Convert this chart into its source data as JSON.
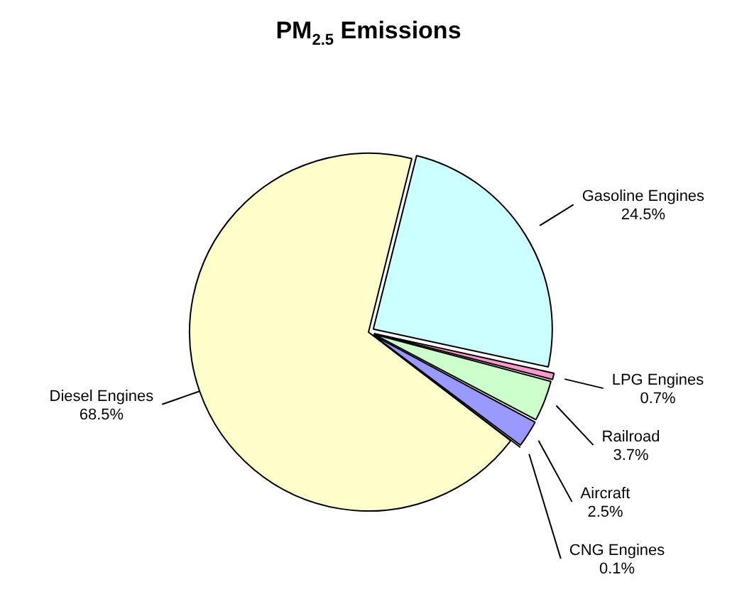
{
  "chart_data": {
    "type": "pie",
    "title": "PM$_{2.5}$ Emissions",
    "categories": [
      "Gasoline Engines",
      "LPG Engines",
      "Railroad",
      "Aircraft",
      "CNG Engines",
      "Diesel Engines"
    ],
    "values": [
      24.5,
      0.7,
      3.7,
      2.5,
      0.1,
      68.5
    ],
    "value_labels": [
      "24.5%",
      "0.7%",
      "3.7%",
      "2.5%",
      "0.1%",
      "68.5%"
    ],
    "colors": [
      "#ccffff",
      "#ff99cc",
      "#ccffcc",
      "#9999ff",
      "#ccffff",
      "#ffffcc"
    ],
    "legend": false
  }
}
